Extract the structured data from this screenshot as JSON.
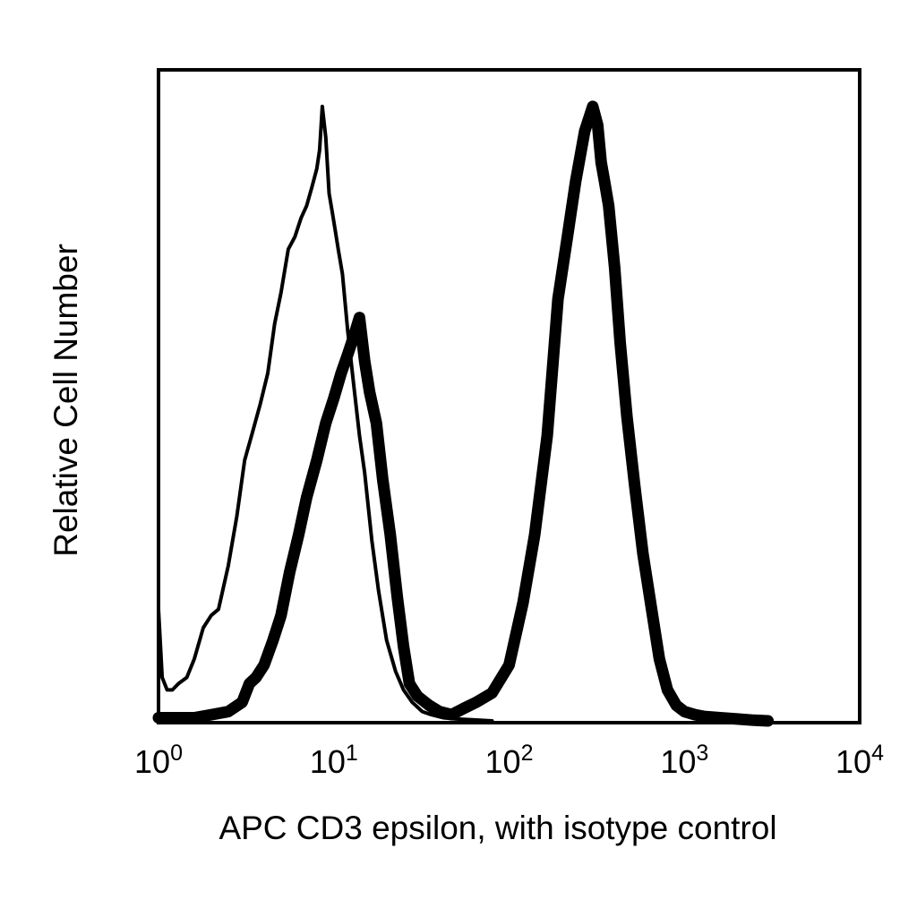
{
  "chart_data": {
    "type": "line",
    "title": "",
    "xlabel": "APC CD3 epsilon, with isotype control",
    "ylabel": "Relative Cell Number",
    "x_scale": "log",
    "xlim": [
      1,
      10000
    ],
    "ylim": [
      0,
      100
    ],
    "grid": false,
    "legend": "none",
    "x_ticks": [
      {
        "value": 1,
        "base": "10",
        "exp": "0"
      },
      {
        "value": 10,
        "base": "10",
        "exp": "1"
      },
      {
        "value": 100,
        "base": "10",
        "exp": "2"
      },
      {
        "value": 1000,
        "base": "10",
        "exp": "3"
      },
      {
        "value": 10000,
        "base": "10",
        "exp": "4"
      }
    ],
    "series": [
      {
        "color": "#000000",
        "x": [
          1.0,
          1.05,
          1.12,
          1.2,
          1.3,
          1.45,
          1.6,
          1.8,
          2.0,
          2.2,
          2.5,
          2.8,
          3.1,
          3.4,
          3.8,
          4.2,
          4.6,
          5.0,
          5.5,
          6.0,
          6.5,
          7.0,
          7.5,
          8.0,
          8.3,
          8.6,
          9.0,
          9.4,
          9.8,
          10.2,
          10.6,
          11.2,
          12.0,
          13.0,
          14.0,
          15.0,
          16.5,
          18.0,
          20.0,
          22.5,
          25.0,
          28.0,
          32.0,
          36.0,
          42.0,
          50.0,
          60.0,
          80.0
        ],
        "values": [
          18,
          7,
          5,
          5,
          6,
          7,
          10,
          15,
          17,
          18,
          25,
          33,
          42,
          46,
          51,
          56,
          64,
          69,
          76,
          78,
          81,
          83,
          86,
          89,
          92,
          99,
          94,
          85,
          82,
          79,
          76,
          72,
          63,
          54,
          46,
          40,
          29,
          21,
          13,
          8,
          5,
          3,
          1.5,
          1,
          0.5,
          0.3,
          0.2,
          0
        ]
      },
      {
        "color": "#000000",
        "x": [
          1.0,
          1.3,
          1.6,
          2.0,
          2.5,
          3.0,
          3.3,
          3.6,
          4.0,
          4.5,
          5.0,
          5.6,
          6.3,
          7.0,
          8.0,
          9.0,
          10.0,
          11.0,
          12.0,
          13.0,
          14.0,
          15.0,
          16.0,
          17.5,
          19.0,
          21.0,
          23.0,
          25.0,
          27.0,
          30.0,
          35.0,
          40.0,
          47.0,
          55.0,
          65.0,
          80.0,
          100.0,
          120.0,
          140.0,
          165.0,
          190.0,
          215.0,
          240.0,
          270.0,
          300.0,
          320.0,
          335.0,
          350.0,
          370.0,
          400.0,
          430.0,
          470.0,
          520.0,
          580.0,
          650.0,
          720.0,
          800.0,
          900.0,
          1000.0,
          1150.0,
          1300.0,
          1600.0,
          2000.0,
          2500.0,
          3000.0
        ],
        "values": [
          0.5,
          0.5,
          0.5,
          1,
          1.5,
          3,
          6,
          7,
          9,
          13,
          17,
          24,
          30,
          36,
          42,
          48,
          52,
          56,
          59,
          62,
          65,
          58,
          53,
          48,
          39,
          30,
          20,
          12,
          6,
          4,
          2.5,
          1.5,
          1,
          2,
          3,
          4.5,
          9,
          19,
          30,
          46,
          68,
          78,
          87,
          95,
          99,
          96,
          90,
          87,
          83,
          73,
          61,
          49,
          38,
          27,
          18,
          10,
          5,
          2.5,
          1.5,
          1,
          0.7,
          0.5,
          0.3,
          0.1,
          0
        ]
      }
    ]
  }
}
